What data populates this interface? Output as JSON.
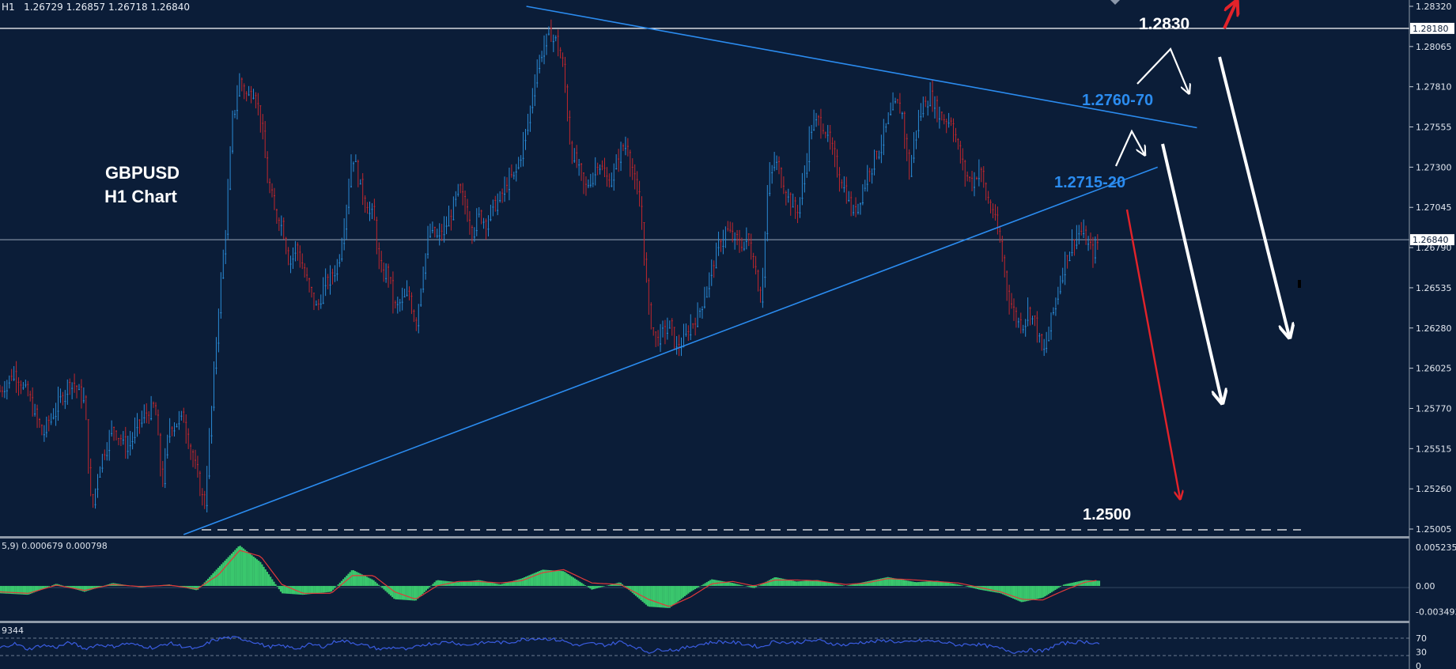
{
  "header": {
    "timeframe": "H1",
    "ohlc": "1.26729 1.26857 1.26718 1.26840"
  },
  "macd_header": "5,9) 0.000679 0.000798",
  "rsi_header": "9344",
  "colors": {
    "background": "#0b1d38",
    "up_candle": "#2a8bd6",
    "down_candle": "#c1272d",
    "trendline": "#2b8cf0",
    "annotation_blue": "#2b8cf0",
    "arrow_red": "#e2232a",
    "macd_hist": "#3ac76d",
    "signal_line": "#e23a3a",
    "rsi_line": "#3a5ce0"
  },
  "chart_data": [
    {
      "type": "candlestick",
      "title": "GBPUSD",
      "subtitle": "H1 Chart",
      "yaxis_ticks": [
        "1.28320",
        "1.28065",
        "1.27810",
        "1.27555",
        "1.27300",
        "1.27045",
        "1.26790",
        "1.26535",
        "1.26280",
        "1.26025",
        "1.25770",
        "1.25515",
        "1.25260",
        "1.25005"
      ],
      "ylim": [
        1.2497,
        1.2836
      ],
      "price_labels": {
        "resistance": "1.28180",
        "current": "1.26840"
      },
      "levels": {
        "resistance": 1.2818,
        "current": 1.2684,
        "support": 1.25
      },
      "annotations": [
        "1.2830",
        "1.2760-70",
        "1.2715-20",
        "1.2500"
      ],
      "trendlines": [
        {
          "name": "upper",
          "from": [
            0.3735,
            1.2832
          ],
          "to": [
            0.8493,
            1.2755
          ]
        },
        {
          "name": "lower",
          "from": [
            0.1303,
            1.2497
          ],
          "to": [
            0.8214,
            1.273
          ]
        }
      ],
      "price_path": [
        [
          0.0,
          1.2588
        ],
        [
          0.01,
          1.26
        ],
        [
          0.02,
          1.2585
        ],
        [
          0.03,
          1.256
        ],
        [
          0.04,
          1.2578
        ],
        [
          0.05,
          1.2595
        ],
        [
          0.06,
          1.2582
        ],
        [
          0.065,
          1.251
        ],
        [
          0.07,
          1.254
        ],
        [
          0.08,
          1.2565
        ],
        [
          0.09,
          1.2552
        ],
        [
          0.1,
          1.257
        ],
        [
          0.11,
          1.2578
        ],
        [
          0.115,
          1.2528
        ],
        [
          0.12,
          1.2565
        ],
        [
          0.13,
          1.2572
        ],
        [
          0.138,
          1.254
        ],
        [
          0.145,
          1.2515
        ],
        [
          0.15,
          1.2575
        ],
        [
          0.155,
          1.264
        ],
        [
          0.16,
          1.269
        ],
        [
          0.165,
          1.276
        ],
        [
          0.17,
          1.2785
        ],
        [
          0.175,
          1.2775
        ],
        [
          0.18,
          1.278
        ],
        [
          0.185,
          1.276
        ],
        [
          0.19,
          1.272
        ],
        [
          0.195,
          1.27
        ],
        [
          0.2,
          1.2695
        ],
        [
          0.205,
          1.267
        ],
        [
          0.21,
          1.268
        ],
        [
          0.215,
          1.2665
        ],
        [
          0.22,
          1.265
        ],
        [
          0.225,
          1.264
        ],
        [
          0.23,
          1.2655
        ],
        [
          0.235,
          1.266
        ],
        [
          0.24,
          1.267
        ],
        [
          0.245,
          1.27
        ],
        [
          0.25,
          1.274
        ],
        [
          0.255,
          1.272
        ],
        [
          0.26,
          1.2705
        ],
        [
          0.265,
          1.27
        ],
        [
          0.27,
          1.266
        ],
        [
          0.275,
          1.2665
        ],
        [
          0.28,
          1.264
        ],
        [
          0.285,
          1.2645
        ],
        [
          0.29,
          1.265
        ],
        [
          0.295,
          1.263
        ],
        [
          0.3,
          1.2665
        ],
        [
          0.305,
          1.269
        ],
        [
          0.31,
          1.2685
        ],
        [
          0.315,
          1.269
        ],
        [
          0.32,
          1.27
        ],
        [
          0.325,
          1.2715
        ],
        [
          0.33,
          1.2705
        ],
        [
          0.335,
          1.269
        ],
        [
          0.34,
          1.27
        ],
        [
          0.345,
          1.2695
        ],
        [
          0.35,
          1.2705
        ],
        [
          0.355,
          1.271
        ],
        [
          0.36,
          1.272
        ],
        [
          0.365,
          1.2725
        ],
        [
          0.37,
          1.274
        ],
        [
          0.375,
          1.276
        ],
        [
          0.38,
          1.279
        ],
        [
          0.385,
          1.2805
        ],
        [
          0.39,
          1.2815
        ],
        [
          0.395,
          1.281
        ],
        [
          0.4,
          1.279
        ],
        [
          0.405,
          1.274
        ],
        [
          0.41,
          1.273
        ],
        [
          0.415,
          1.2715
        ],
        [
          0.42,
          1.2725
        ],
        [
          0.425,
          1.2735
        ],
        [
          0.43,
          1.272
        ],
        [
          0.435,
          1.2725
        ],
        [
          0.44,
          1.274
        ],
        [
          0.445,
          1.2745
        ],
        [
          0.45,
          1.272
        ],
        [
          0.455,
          1.27
        ],
        [
          0.46,
          1.264
        ],
        [
          0.465,
          1.262
        ],
        [
          0.47,
          1.2625
        ],
        [
          0.475,
          1.263
        ],
        [
          0.48,
          1.2615
        ],
        [
          0.485,
          1.262
        ],
        [
          0.49,
          1.263
        ],
        [
          0.495,
          1.2635
        ],
        [
          0.5,
          1.265
        ],
        [
          0.505,
          1.2665
        ],
        [
          0.51,
          1.268
        ],
        [
          0.515,
          1.269
        ],
        [
          0.52,
          1.2685
        ],
        [
          0.525,
          1.268
        ],
        [
          0.53,
          1.2685
        ],
        [
          0.535,
          1.267
        ],
        [
          0.54,
          1.2645
        ],
        [
          0.545,
          1.272
        ],
        [
          0.55,
          1.2735
        ],
        [
          0.555,
          1.272
        ],
        [
          0.56,
          1.271
        ],
        [
          0.565,
          1.27
        ],
        [
          0.57,
          1.272
        ],
        [
          0.575,
          1.2755
        ],
        [
          0.58,
          1.276
        ],
        [
          0.585,
          1.2755
        ],
        [
          0.59,
          1.274
        ],
        [
          0.595,
          1.2725
        ],
        [
          0.6,
          1.2715
        ],
        [
          0.605,
          1.27
        ],
        [
          0.61,
          1.271
        ],
        [
          0.615,
          1.2725
        ],
        [
          0.62,
          1.2735
        ],
        [
          0.625,
          1.2745
        ],
        [
          0.63,
          1.276
        ],
        [
          0.635,
          1.277
        ],
        [
          0.64,
          1.2765
        ],
        [
          0.645,
          1.2725
        ],
        [
          0.65,
          1.2755
        ],
        [
          0.655,
          1.277
        ],
        [
          0.66,
          1.2775
        ],
        [
          0.665,
          1.2765
        ],
        [
          0.67,
          1.276
        ],
        [
          0.675,
          1.276
        ],
        [
          0.68,
          1.274
        ],
        [
          0.685,
          1.2725
        ],
        [
          0.69,
          1.272
        ],
        [
          0.695,
          1.273
        ],
        [
          0.7,
          1.271
        ],
        [
          0.705,
          1.27
        ],
        [
          0.71,
          1.268
        ],
        [
          0.715,
          1.265
        ],
        [
          0.72,
          1.2635
        ],
        [
          0.725,
          1.263
        ],
        [
          0.73,
          1.264
        ],
        [
          0.735,
          1.263
        ],
        [
          0.74,
          1.261
        ],
        [
          0.745,
          1.263
        ],
        [
          0.75,
          1.265
        ],
        [
          0.755,
          1.267
        ],
        [
          0.76,
          1.268
        ],
        [
          0.765,
          1.269
        ],
        [
          0.77,
          1.2685
        ],
        [
          0.775,
          1.2675
        ],
        [
          0.78,
          1.2684
        ]
      ]
    },
    {
      "type": "area",
      "title": "",
      "yaxis_ticks": [
        "0.005235",
        "0.00",
        "-0.003493"
      ],
      "ylim": [
        -0.0045,
        0.0062
      ],
      "values": [
        [
          0.0,
          -0.001
        ],
        [
          0.02,
          -0.0012
        ],
        [
          0.04,
          0.0003
        ],
        [
          0.06,
          -0.0008
        ],
        [
          0.08,
          0.0004
        ],
        [
          0.1,
          -0.0002
        ],
        [
          0.12,
          0.0002
        ],
        [
          0.14,
          -0.0006
        ],
        [
          0.155,
          0.0025
        ],
        [
          0.17,
          0.0055
        ],
        [
          0.185,
          0.0032
        ],
        [
          0.2,
          -0.001
        ],
        [
          0.215,
          -0.0012
        ],
        [
          0.235,
          -0.0008
        ],
        [
          0.25,
          0.0022
        ],
        [
          0.265,
          0.0008
        ],
        [
          0.28,
          -0.0018
        ],
        [
          0.295,
          -0.002
        ],
        [
          0.31,
          0.0008
        ],
        [
          0.325,
          0.0005
        ],
        [
          0.34,
          0.0008
        ],
        [
          0.355,
          0.0002
        ],
        [
          0.37,
          0.001
        ],
        [
          0.385,
          0.0022
        ],
        [
          0.4,
          0.002
        ],
        [
          0.42,
          -0.0005
        ],
        [
          0.44,
          0.0005
        ],
        [
          0.46,
          -0.0028
        ],
        [
          0.475,
          -0.003
        ],
        [
          0.49,
          -0.0008
        ],
        [
          0.505,
          0.0009
        ],
        [
          0.52,
          0.0004
        ],
        [
          0.535,
          -0.0003
        ],
        [
          0.55,
          0.0012
        ],
        [
          0.565,
          0.0006
        ],
        [
          0.58,
          0.0008
        ],
        [
          0.6,
          0.0
        ],
        [
          0.615,
          0.0006
        ],
        [
          0.63,
          0.0012
        ],
        [
          0.65,
          0.0005
        ],
        [
          0.665,
          0.0007
        ],
        [
          0.68,
          0.0002
        ],
        [
          0.695,
          -0.0005
        ],
        [
          0.71,
          -0.001
        ],
        [
          0.725,
          -0.0022
        ],
        [
          0.74,
          -0.0016
        ],
        [
          0.755,
          0.0002
        ],
        [
          0.77,
          0.0008
        ],
        [
          0.78,
          0.0007
        ]
      ],
      "signal": [
        [
          0.0,
          -0.0008
        ],
        [
          0.02,
          -0.001
        ],
        [
          0.04,
          0.0001
        ],
        [
          0.06,
          -0.0006
        ],
        [
          0.08,
          0.0002
        ],
        [
          0.1,
          -0.0001
        ],
        [
          0.12,
          0.0001
        ],
        [
          0.14,
          -0.0004
        ],
        [
          0.155,
          0.0015
        ],
        [
          0.17,
          0.0048
        ],
        [
          0.185,
          0.004
        ],
        [
          0.2,
          0.0002
        ],
        [
          0.215,
          -0.001
        ],
        [
          0.235,
          -0.001
        ],
        [
          0.25,
          0.0014
        ],
        [
          0.265,
          0.0014
        ],
        [
          0.28,
          -0.0008
        ],
        [
          0.295,
          -0.0018
        ],
        [
          0.31,
          0.0
        ],
        [
          0.325,
          0.0006
        ],
        [
          0.34,
          0.0006
        ],
        [
          0.355,
          0.0004
        ],
        [
          0.37,
          0.0007
        ],
        [
          0.385,
          0.0018
        ],
        [
          0.4,
          0.0022
        ],
        [
          0.42,
          0.0004
        ],
        [
          0.44,
          0.0002
        ],
        [
          0.46,
          -0.0018
        ],
        [
          0.475,
          -0.0028
        ],
        [
          0.49,
          -0.0015
        ],
        [
          0.505,
          0.0003
        ],
        [
          0.52,
          0.0006
        ],
        [
          0.535,
          0.0
        ],
        [
          0.55,
          0.0008
        ],
        [
          0.565,
          0.0008
        ],
        [
          0.58,
          0.0007
        ],
        [
          0.6,
          0.0002
        ],
        [
          0.615,
          0.0004
        ],
        [
          0.63,
          0.001
        ],
        [
          0.65,
          0.0008
        ],
        [
          0.665,
          0.0006
        ],
        [
          0.68,
          0.0004
        ],
        [
          0.695,
          -0.0002
        ],
        [
          0.71,
          -0.0008
        ],
        [
          0.725,
          -0.0018
        ],
        [
          0.74,
          -0.0019
        ],
        [
          0.755,
          -0.0006
        ],
        [
          0.77,
          0.0005
        ],
        [
          0.78,
          0.0008
        ]
      ]
    },
    {
      "type": "line",
      "title": "",
      "yaxis_ticks": [
        "70",
        "30",
        "0"
      ],
      "ylim": [
        0,
        100
      ],
      "levels": [
        70,
        30
      ],
      "values": [
        [
          0.0,
          42
        ],
        [
          0.01,
          55
        ],
        [
          0.02,
          38
        ],
        [
          0.03,
          50
        ],
        [
          0.04,
          44
        ],
        [
          0.05,
          58
        ],
        [
          0.06,
          40
        ],
        [
          0.07,
          52
        ],
        [
          0.08,
          46
        ],
        [
          0.09,
          55
        ],
        [
          0.1,
          48
        ],
        [
          0.11,
          42
        ],
        [
          0.12,
          56
        ],
        [
          0.13,
          46
        ],
        [
          0.14,
          38
        ],
        [
          0.15,
          62
        ],
        [
          0.16,
          72
        ],
        [
          0.17,
          70
        ],
        [
          0.18,
          60
        ],
        [
          0.19,
          45
        ],
        [
          0.2,
          48
        ],
        [
          0.21,
          40
        ],
        [
          0.22,
          52
        ],
        [
          0.23,
          46
        ],
        [
          0.24,
          64
        ],
        [
          0.25,
          58
        ],
        [
          0.26,
          48
        ],
        [
          0.27,
          38
        ],
        [
          0.28,
          44
        ],
        [
          0.29,
          36
        ],
        [
          0.3,
          52
        ],
        [
          0.31,
          56
        ],
        [
          0.32,
          60
        ],
        [
          0.33,
          50
        ],
        [
          0.34,
          55
        ],
        [
          0.35,
          60
        ],
        [
          0.36,
          56
        ],
        [
          0.37,
          66
        ],
        [
          0.38,
          70
        ],
        [
          0.39,
          68
        ],
        [
          0.4,
          62
        ],
        [
          0.41,
          48
        ],
        [
          0.42,
          55
        ],
        [
          0.43,
          50
        ],
        [
          0.44,
          60
        ],
        [
          0.45,
          46
        ],
        [
          0.46,
          30
        ],
        [
          0.47,
          38
        ],
        [
          0.48,
          36
        ],
        [
          0.49,
          46
        ],
        [
          0.5,
          55
        ],
        [
          0.51,
          60
        ],
        [
          0.52,
          58
        ],
        [
          0.53,
          52
        ],
        [
          0.54,
          44
        ],
        [
          0.55,
          62
        ],
        [
          0.56,
          56
        ],
        [
          0.57,
          60
        ],
        [
          0.58,
          64
        ],
        [
          0.59,
          55
        ],
        [
          0.6,
          50
        ],
        [
          0.61,
          58
        ],
        [
          0.62,
          60
        ],
        [
          0.63,
          64
        ],
        [
          0.64,
          56
        ],
        [
          0.65,
          62
        ],
        [
          0.66,
          62
        ],
        [
          0.67,
          58
        ],
        [
          0.68,
          50
        ],
        [
          0.69,
          54
        ],
        [
          0.7,
          48
        ],
        [
          0.71,
          40
        ],
        [
          0.72,
          30
        ],
        [
          0.73,
          36
        ],
        [
          0.74,
          32
        ],
        [
          0.75,
          52
        ],
        [
          0.76,
          58
        ],
        [
          0.77,
          60
        ],
        [
          0.78,
          55
        ]
      ]
    }
  ]
}
